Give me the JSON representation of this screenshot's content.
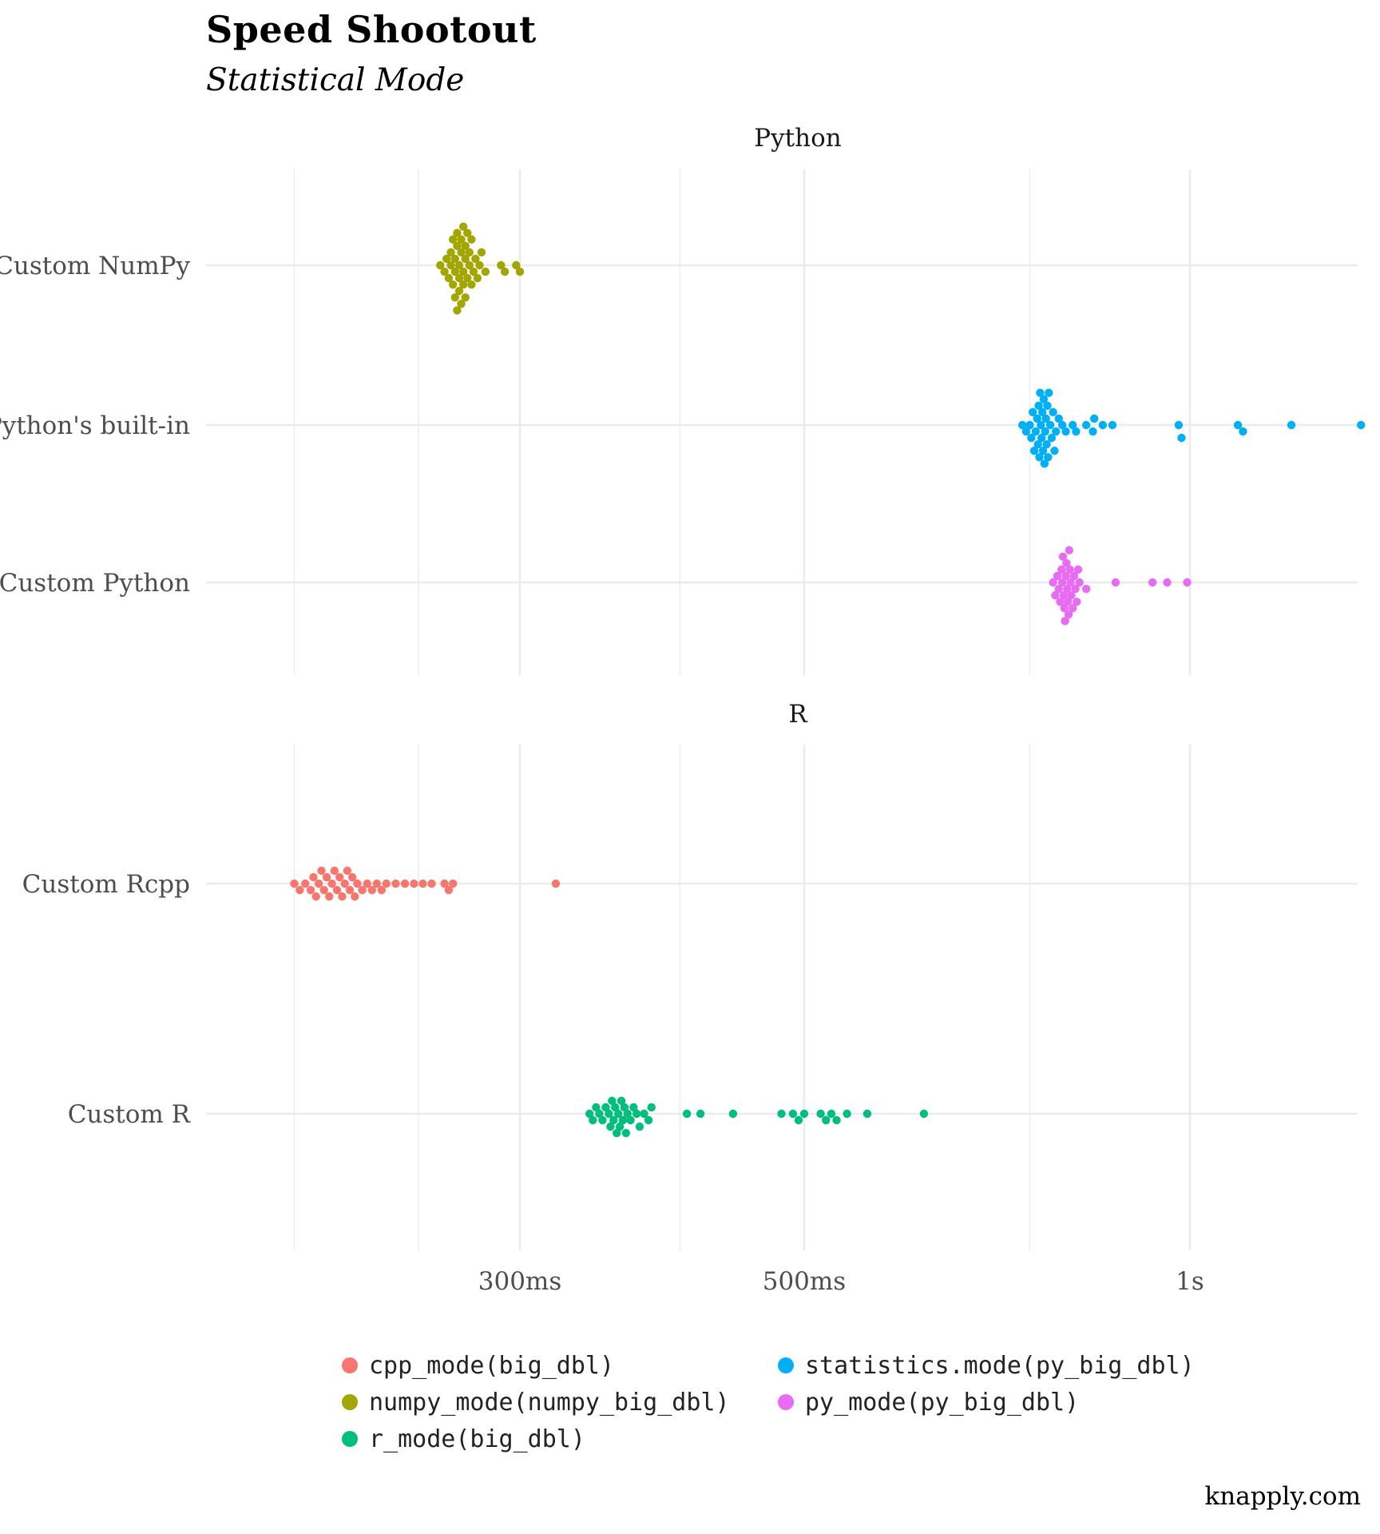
{
  "header": {
    "title": "Speed Shootout",
    "subtitle": "Statistical Mode"
  },
  "caption": "knapply.com",
  "chart_data": {
    "type": "scatter",
    "title": "Speed Shootout",
    "subtitle": "Statistical Mode",
    "x_scale": "log",
    "x_unit": "seconds",
    "x_ticks": [
      {
        "value": 0.3,
        "label": "300ms"
      },
      {
        "value": 0.5,
        "label": "500ms"
      },
      {
        "value": 1.0,
        "label": "1s"
      }
    ],
    "grid": true,
    "legend_position": "bottom",
    "facets": [
      {
        "name": "Python",
        "categories": [
          "Custom NumPy",
          "Python's built-in",
          "Custom Python"
        ],
        "series": [
          {
            "name": "numpy_mode(numpy_big_dbl)",
            "category": "Custom NumPy",
            "color": "#A3A500",
            "x": [
              0.26,
              0.262,
              0.263,
              0.264,
              0.265,
              0.265,
              0.266,
              0.266,
              0.267,
              0.267,
              0.267,
              0.268,
              0.268,
              0.268,
              0.269,
              0.269,
              0.269,
              0.27,
              0.27,
              0.27,
              0.271,
              0.271,
              0.271,
              0.272,
              0.272,
              0.272,
              0.273,
              0.273,
              0.274,
              0.274,
              0.275,
              0.275,
              0.276,
              0.277,
              0.278,
              0.279,
              0.28,
              0.282,
              0.29,
              0.292,
              0.298,
              0.3
            ]
          },
          {
            "name": "statistics.mode(py_big_dbl)",
            "category": "Python's built-in",
            "color": "#00B0F6",
            "x": [
              0.74,
              0.745,
              0.75,
              0.752,
              0.754,
              0.756,
              0.758,
              0.76,
              0.761,
              0.762,
              0.763,
              0.764,
              0.765,
              0.766,
              0.767,
              0.768,
              0.769,
              0.77,
              0.771,
              0.772,
              0.773,
              0.774,
              0.775,
              0.776,
              0.778,
              0.78,
              0.782,
              0.784,
              0.786,
              0.79,
              0.795,
              0.8,
              0.81,
              0.815,
              0.83,
              0.84,
              0.842,
              0.855,
              0.87,
              0.98,
              0.985,
              1.09,
              1.1,
              1.2,
              1.36
            ]
          },
          {
            "name": "py_mode(py_big_dbl)",
            "category": "Custom Python",
            "color": "#E76BF3",
            "x": [
              0.782,
              0.785,
              0.788,
              0.79,
              0.792,
              0.794,
              0.795,
              0.796,
              0.797,
              0.798,
              0.799,
              0.8,
              0.801,
              0.802,
              0.803,
              0.804,
              0.805,
              0.806,
              0.807,
              0.808,
              0.81,
              0.812,
              0.814,
              0.816,
              0.818,
              0.82,
              0.83,
              0.875,
              0.935,
              0.96,
              0.995
            ]
          }
        ]
      },
      {
        "name": "R",
        "categories": [
          "Custom Rcpp",
          "Custom R"
        ],
        "series": [
          {
            "name": "cpp_mode(big_dbl)",
            "category": "Custom Rcpp",
            "color": "#F8766D",
            "x": [
              0.2,
              0.202,
              0.204,
              0.206,
              0.207,
              0.208,
              0.209,
              0.21,
              0.211,
              0.212,
              0.213,
              0.214,
              0.215,
              0.216,
              0.217,
              0.218,
              0.219,
              0.22,
              0.221,
              0.222,
              0.223,
              0.224,
              0.226,
              0.228,
              0.23,
              0.232,
              0.234,
              0.236,
              0.24,
              0.244,
              0.248,
              0.252,
              0.256,
              0.262,
              0.264,
              0.266,
              0.32
            ]
          },
          {
            "name": "r_mode(big_dbl)",
            "category": "Custom R",
            "color": "#00BF7D",
            "x": [
              0.34,
              0.342,
              0.344,
              0.346,
              0.348,
              0.35,
              0.352,
              0.353,
              0.354,
              0.355,
              0.356,
              0.357,
              0.358,
              0.359,
              0.36,
              0.361,
              0.362,
              0.363,
              0.364,
              0.366,
              0.368,
              0.37,
              0.372,
              0.375,
              0.378,
              0.38,
              0.405,
              0.415,
              0.44,
              0.48,
              0.49,
              0.495,
              0.5,
              0.515,
              0.52,
              0.525,
              0.53,
              0.54,
              0.56,
              0.62
            ]
          }
        ]
      }
    ],
    "legend": [
      {
        "label": "cpp_mode(big_dbl)",
        "color": "#F8766D"
      },
      {
        "label": "statistics.mode(py_big_dbl)",
        "color": "#00B0F6"
      },
      {
        "label": "numpy_mode(numpy_big_dbl)",
        "color": "#A3A500"
      },
      {
        "label": "py_mode(py_big_dbl)",
        "color": "#E76BF3"
      },
      {
        "label": "r_mode(big_dbl)",
        "color": "#00BF7D"
      }
    ]
  }
}
